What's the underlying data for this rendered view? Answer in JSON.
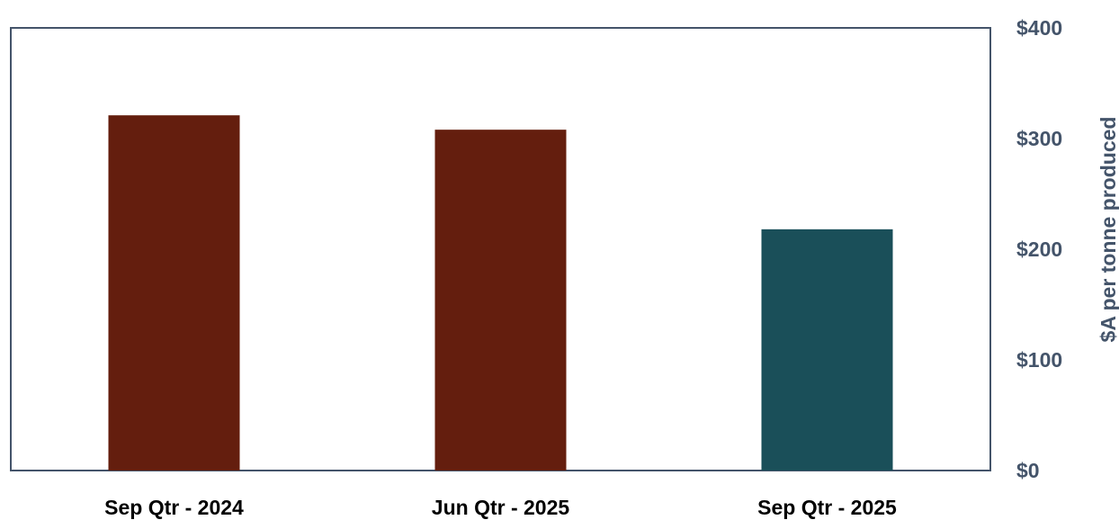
{
  "chart_data": {
    "type": "bar",
    "categories": [
      "Sep Qtr - 2024",
      "Jun Qtr - 2025",
      "Sep Qtr - 2025"
    ],
    "values": [
      321,
      308,
      218
    ],
    "bar_colors": [
      "#641e0e",
      "#641e0e",
      "#1a4f59"
    ],
    "title": "",
    "xlabel": "",
    "ylabel": "$A per tonne produced",
    "ylim": [
      0,
      400
    ],
    "yticks": [
      0,
      100,
      200,
      300,
      400
    ],
    "ytick_labels": [
      "$0",
      "$100",
      "$200",
      "$300",
      "$400"
    ],
    "y_axis_side": "right",
    "grid": false
  }
}
